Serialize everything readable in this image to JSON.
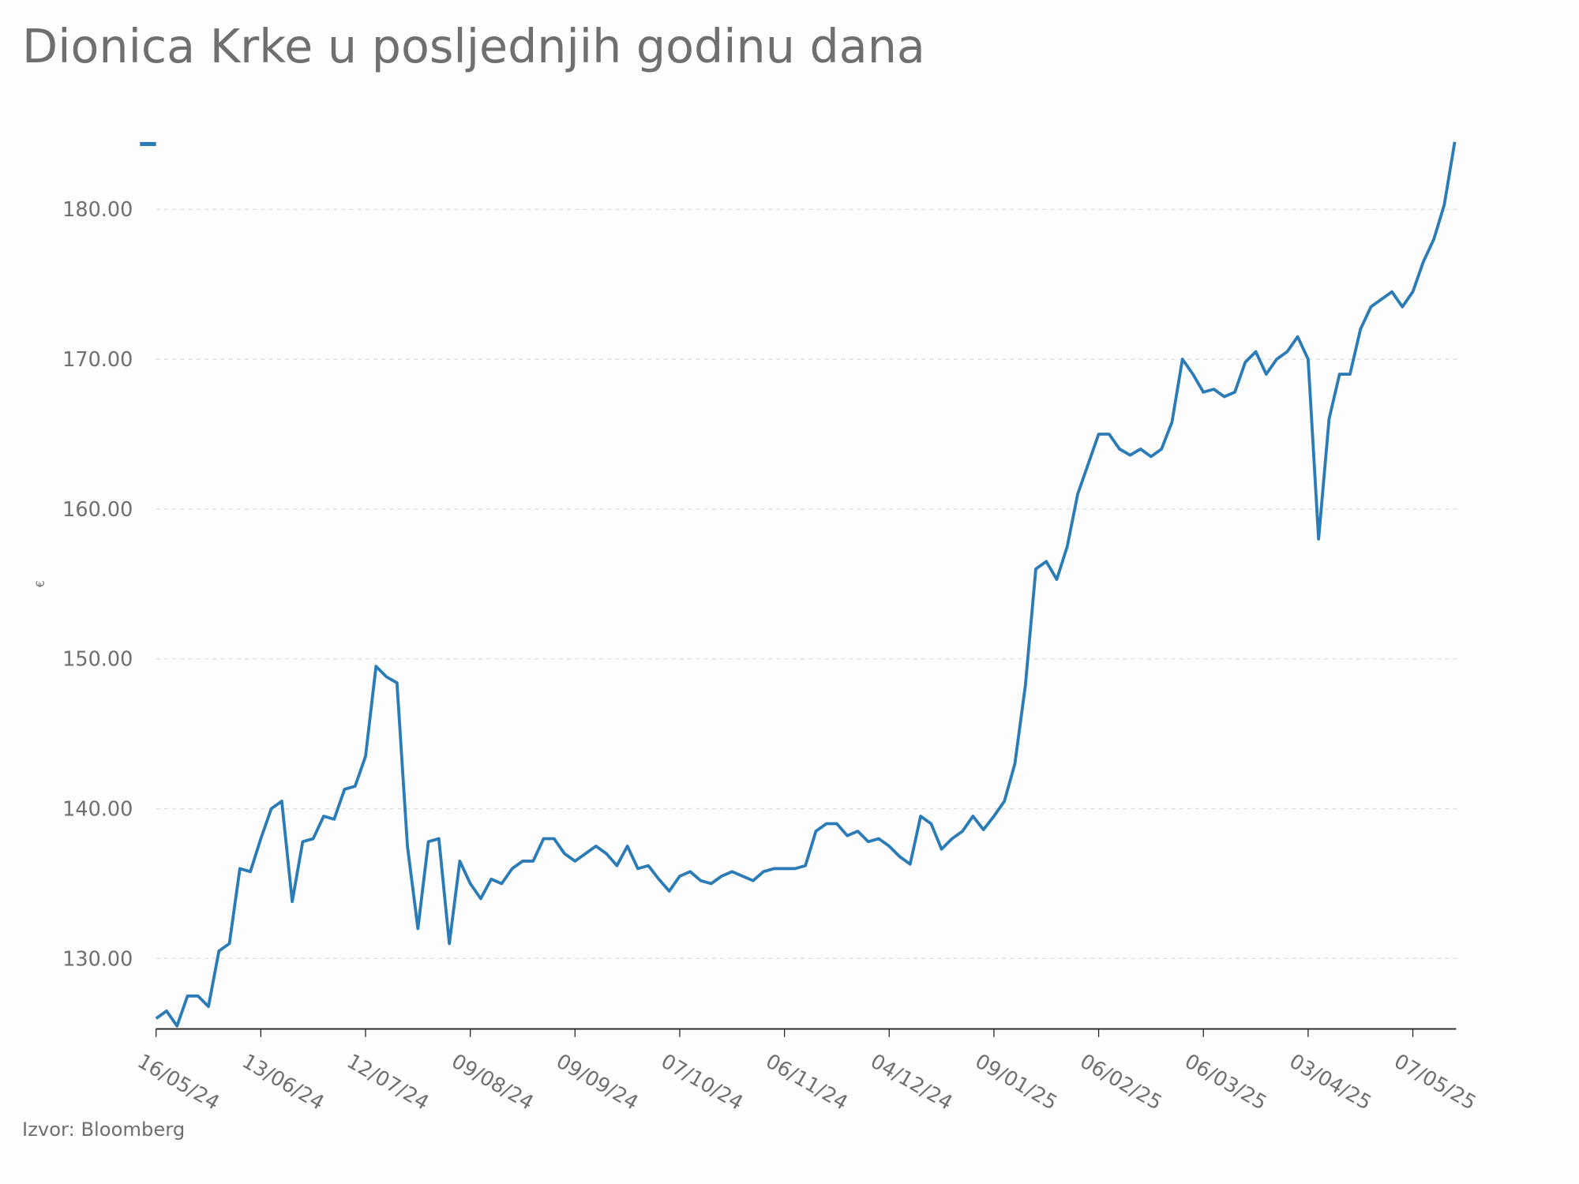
{
  "chart_data": {
    "type": "line",
    "title": "Dionica Krke u posljednjih godinu dana",
    "ylabel": "€",
    "source": "Izvor: Bloomberg",
    "categories": [
      "16/05/24",
      null,
      null,
      null,
      null,
      null,
      null,
      null,
      null,
      null,
      "13/06/24",
      null,
      null,
      null,
      null,
      null,
      null,
      null,
      null,
      null,
      "12/07/24",
      null,
      null,
      null,
      null,
      null,
      null,
      null,
      null,
      null,
      "09/08/24",
      null,
      null,
      null,
      null,
      null,
      null,
      null,
      null,
      null,
      "09/09/24",
      null,
      null,
      null,
      null,
      null,
      null,
      null,
      null,
      null,
      "07/10/24",
      null,
      null,
      null,
      null,
      null,
      null,
      null,
      null,
      null,
      "06/11/24",
      null,
      null,
      null,
      null,
      null,
      null,
      null,
      null,
      null,
      "04/12/24",
      null,
      null,
      null,
      null,
      null,
      null,
      null,
      null,
      null,
      "09/01/25",
      null,
      null,
      null,
      null,
      null,
      null,
      null,
      null,
      null,
      "06/02/25",
      null,
      null,
      null,
      null,
      null,
      null,
      null,
      null,
      null,
      "06/03/25",
      null,
      null,
      null,
      null,
      null,
      null,
      null,
      null,
      null,
      "03/04/25",
      null,
      null,
      null,
      null,
      null,
      null,
      null,
      null,
      null,
      "07/05/25",
      null,
      null,
      null,
      null
    ],
    "series": [
      {
        "color": "#2b7bb6",
        "values": [
          126,
          126.5,
          125.5,
          127.5,
          127.5,
          126.8,
          130.5,
          131,
          136,
          135.8,
          138,
          140,
          140.5,
          133.8,
          137.8,
          138,
          139.5,
          139.3,
          141.3,
          141.5,
          143.5,
          149.5,
          148.8,
          148.4,
          137.5,
          132,
          137.8,
          138,
          131,
          136.5,
          135,
          134,
          135.3,
          135,
          136,
          136.5,
          136.5,
          138,
          138,
          137,
          136.5,
          137,
          137.5,
          137,
          136.2,
          137.5,
          136,
          136.2,
          135.3,
          134.5,
          135.5,
          135.8,
          135.2,
          135,
          135.5,
          135.8,
          135.5,
          135.2,
          135.8,
          136,
          136,
          136,
          136.2,
          138.5,
          139,
          139,
          138.2,
          138.5,
          137.8,
          138,
          137.5,
          136.8,
          136.3,
          139.5,
          139,
          137.3,
          138,
          138.5,
          139.5,
          138.6,
          139.5,
          140.5,
          143,
          148.2,
          156,
          156.5,
          155.3,
          157.5,
          161,
          163,
          165,
          165,
          164,
          163.6,
          164,
          163.5,
          164,
          165.8,
          170,
          169,
          167.8,
          168,
          167.5,
          167.8,
          169.8,
          170.5,
          169,
          170,
          170.5,
          171.5,
          170,
          158,
          166,
          169,
          169,
          172,
          173.5,
          174,
          174.5,
          173.5,
          174.5,
          176.5,
          178,
          180.3,
          184.5
        ]
      }
    ],
    "ylim": [
      125.3,
      184.6
    ],
    "yticks": [
      {
        "value": 130,
        "label": "130.00"
      },
      {
        "value": 140,
        "label": "140.00"
      },
      {
        "value": 150,
        "label": "150.00"
      },
      {
        "value": 160,
        "label": "160.00"
      },
      {
        "value": 170,
        "label": "170.00"
      },
      {
        "value": 180,
        "label": "180.00"
      }
    ],
    "grid": true
  }
}
